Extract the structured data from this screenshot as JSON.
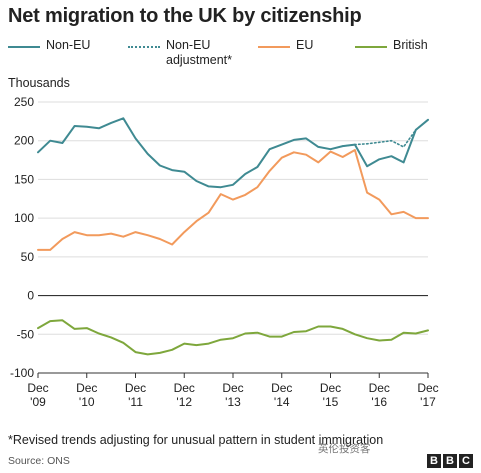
{
  "title": "Net migration to the UK by citizenship",
  "legend": [
    {
      "label": "Non-EU",
      "label2": "",
      "color": "#3f8a92",
      "dash": false
    },
    {
      "label": "Non-EU",
      "label2": "adjustment*",
      "color": "#3f8a92",
      "dash": true
    },
    {
      "label": "EU",
      "label2": "",
      "color": "#f29a5c",
      "dash": false
    },
    {
      "label": "British",
      "label2": "",
      "color": "#7ea73c",
      "dash": false
    }
  ],
  "unit_label": "Thousands",
  "footnote": "*Revised trends adjusting for unusual pattern in student immigration",
  "source": "Source: ONS",
  "logo": [
    "B",
    "B",
    "C"
  ],
  "watermark": "英伦投资客",
  "chart_data": {
    "type": "line",
    "ylim": [
      -100,
      250
    ],
    "yticks": [
      250,
      200,
      150,
      100,
      50,
      0,
      -50,
      -100
    ],
    "xlim": [
      0,
      32
    ],
    "xticks": [
      {
        "x": 0,
        "line1": "Dec",
        "line2": "'09"
      },
      {
        "x": 4,
        "line1": "Dec",
        "line2": "'10"
      },
      {
        "x": 8,
        "line1": "Dec",
        "line2": "'11"
      },
      {
        "x": 12,
        "line1": "Dec",
        "line2": "'12"
      },
      {
        "x": 16,
        "line1": "Dec",
        "line2": "'13"
      },
      {
        "x": 20,
        "line1": "Dec",
        "line2": "'14"
      },
      {
        "x": 24,
        "line1": "Dec",
        "line2": "'15"
      },
      {
        "x": 28,
        "line1": "Dec",
        "line2": "'16"
      },
      {
        "x": 32,
        "line1": "Dec",
        "line2": "'17"
      }
    ],
    "grid": true,
    "series": [
      {
        "name": "Non-EU",
        "color": "#3f8a92",
        "dash": false,
        "x": [
          0,
          1,
          2,
          3,
          4,
          5,
          6,
          7,
          8,
          9,
          10,
          11,
          12,
          13,
          14,
          15,
          16,
          17,
          18,
          19,
          20,
          21,
          22,
          23,
          24,
          25,
          26,
          27,
          28,
          29,
          30,
          31,
          32
        ],
        "values": [
          185,
          200,
          197,
          219,
          218,
          216,
          223,
          229,
          203,
          183,
          168,
          162,
          160,
          148,
          141,
          140,
          143,
          157,
          166,
          189,
          195,
          201,
          203,
          192,
          189,
          193,
          195,
          167,
          176,
          180,
          172,
          214,
          227
        ]
      },
      {
        "name": "Non-EU adjustment*",
        "color": "#3f8a92",
        "dash": true,
        "x": [
          25,
          26,
          27,
          28,
          29,
          30,
          31,
          32
        ],
        "values": [
          193,
          195,
          196,
          198,
          200,
          192,
          214,
          227
        ]
      },
      {
        "name": "EU",
        "color": "#f29a5c",
        "dash": false,
        "x": [
          0,
          1,
          2,
          3,
          4,
          5,
          6,
          7,
          8,
          9,
          10,
          11,
          12,
          13,
          14,
          15,
          16,
          17,
          18,
          19,
          20,
          21,
          22,
          23,
          24,
          25,
          26,
          27,
          28,
          29,
          30,
          31,
          32
        ],
        "values": [
          59,
          59,
          73,
          82,
          78,
          78,
          80,
          76,
          82,
          78,
          73,
          66,
          82,
          96,
          107,
          131,
          124,
          130,
          140,
          161,
          178,
          185,
          182,
          172,
          186,
          179,
          188,
          133,
          124,
          105,
          108,
          100,
          100
        ]
      },
      {
        "name": "British",
        "color": "#7ea73c",
        "dash": false,
        "x": [
          0,
          1,
          2,
          3,
          4,
          5,
          6,
          7,
          8,
          9,
          10,
          11,
          12,
          13,
          14,
          15,
          16,
          17,
          18,
          19,
          20,
          21,
          22,
          23,
          24,
          25,
          26,
          27,
          28,
          29,
          30,
          31,
          32
        ],
        "values": [
          -42,
          -33,
          -32,
          -43,
          -42,
          -49,
          -54,
          -61,
          -73,
          -76,
          -74,
          -70,
          -62,
          -64,
          -62,
          -57,
          -55,
          -49,
          -48,
          -53,
          -53,
          -47,
          -46,
          -40,
          -40,
          -43,
          -50,
          -55,
          -58,
          -57,
          -48,
          -49,
          -45
        ]
      }
    ]
  }
}
